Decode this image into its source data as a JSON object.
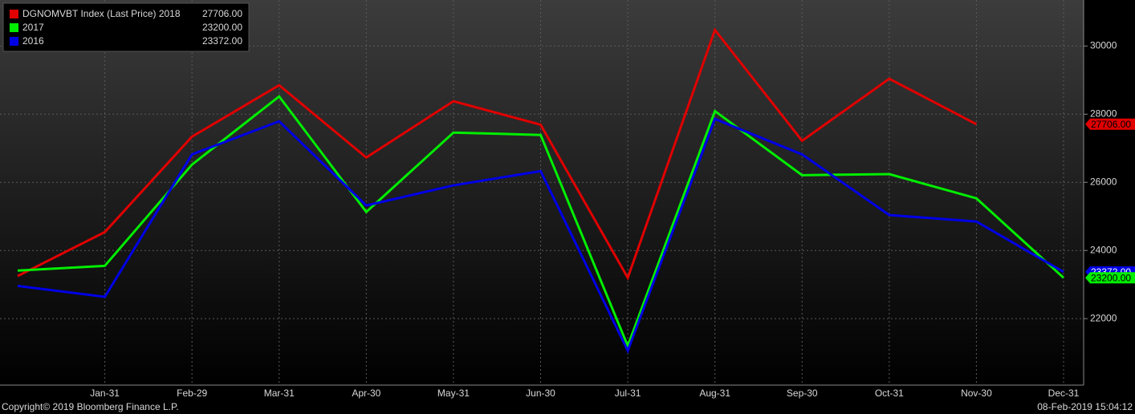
{
  "chart_data": {
    "type": "line",
    "categories": [
      null,
      "Jan-31",
      "Feb-29",
      "Mar-31",
      "Apr-30",
      "May-31",
      "Jun-30",
      "Jul-31",
      "Aug-31",
      "Sep-30",
      "Oct-31",
      "Nov-30",
      "Dec-31"
    ],
    "series": [
      {
        "name": "DGNOMVBT Index (Last Price) 2018",
        "color": "#e00000",
        "last_value_label": "27706.00",
        "values": [
          23250,
          24540,
          27340,
          28850,
          26730,
          28380,
          27690,
          23200,
          30470,
          27220,
          29040,
          27706,
          null
        ]
      },
      {
        "name": "2017",
        "color": "#00ee00",
        "last_value_label": "23200.00",
        "values": [
          23410,
          23550,
          26520,
          28520,
          25130,
          27460,
          27390,
          21200,
          28090,
          26210,
          26240,
          25530,
          23200
        ]
      },
      {
        "name": "2016",
        "color": "#0000e6",
        "last_value_label": "23372.00",
        "values": [
          22960,
          22640,
          26820,
          27790,
          25320,
          25910,
          26330,
          21060,
          27860,
          26820,
          25040,
          24850,
          23372
        ]
      }
    ],
    "ylim": [
      20050,
      31350
    ],
    "yticks": [
      22000,
      24000,
      26000,
      28000,
      30000
    ],
    "grid": true,
    "copyright": "Copyright© 2019 Bloomberg Finance L.P.",
    "timestamp": "08-Feb-2019 15:04:12"
  }
}
